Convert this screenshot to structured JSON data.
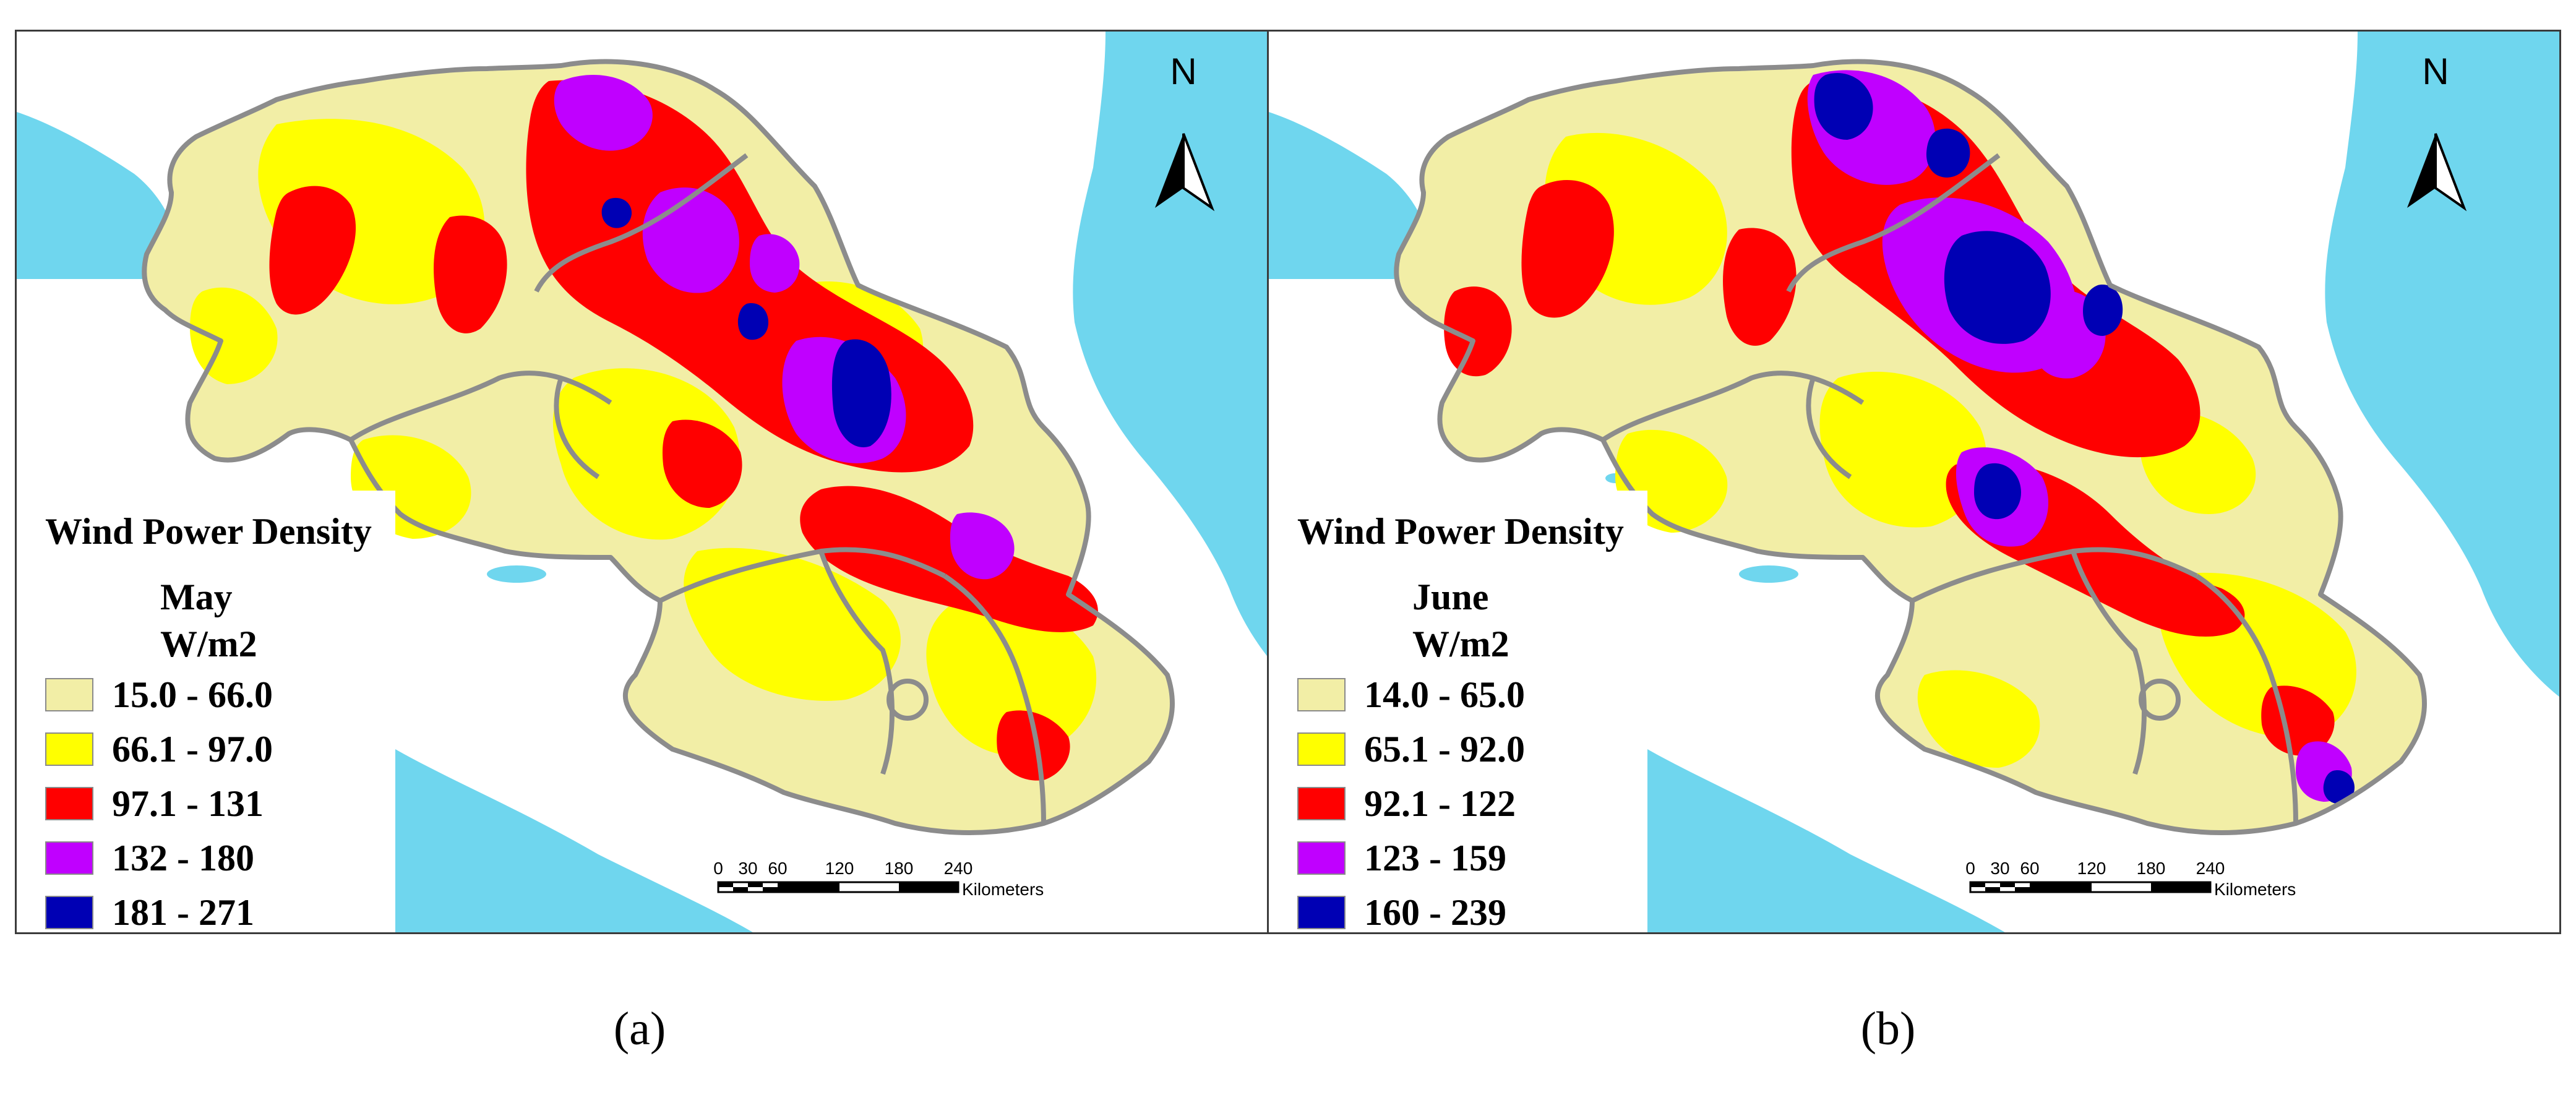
{
  "panels": [
    {
      "id": "a",
      "caption": "(a)",
      "north_label": "N",
      "legend": {
        "title": "Wind Power Density",
        "month": "May",
        "unit": "W/m2",
        "classes": [
          {
            "label": "15.0 - 66.0",
            "color": "#f2eea6"
          },
          {
            "label": "66.1 - 97.0",
            "color": "#ffff00"
          },
          {
            "label": "97.1 - 131",
            "color": "#ff0000"
          },
          {
            "label": "132 - 180",
            "color": "#c000ff"
          },
          {
            "label": "181 - 271",
            "color": "#0000b4"
          }
        ]
      },
      "scale_bar": {
        "ticks": [
          "0",
          "30",
          "60",
          "120",
          "180",
          "240"
        ],
        "unit": "Kilometers"
      }
    },
    {
      "id": "b",
      "caption": "(b)",
      "north_label": "N",
      "legend": {
        "title": "Wind Power Density",
        "month": "June",
        "unit": "W/m2",
        "classes": [
          {
            "label": "14.0 - 65.0",
            "color": "#f2eea6"
          },
          {
            "label": "65.1 - 92.0",
            "color": "#ffff00"
          },
          {
            "label": "92.1 - 122",
            "color": "#ff0000"
          },
          {
            "label": "123 - 159",
            "color": "#c000ff"
          },
          {
            "label": "160 - 239",
            "color": "#0000b4"
          }
        ]
      },
      "scale_bar": {
        "ticks": [
          "0",
          "30",
          "60",
          "120",
          "180",
          "240"
        ],
        "unit": "Kilometers"
      }
    }
  ],
  "colors": {
    "ocean": "#6fd6ee",
    "land": "#ffffff",
    "boundary": "#8c8c8c",
    "lake": "#6fd6ee"
  }
}
